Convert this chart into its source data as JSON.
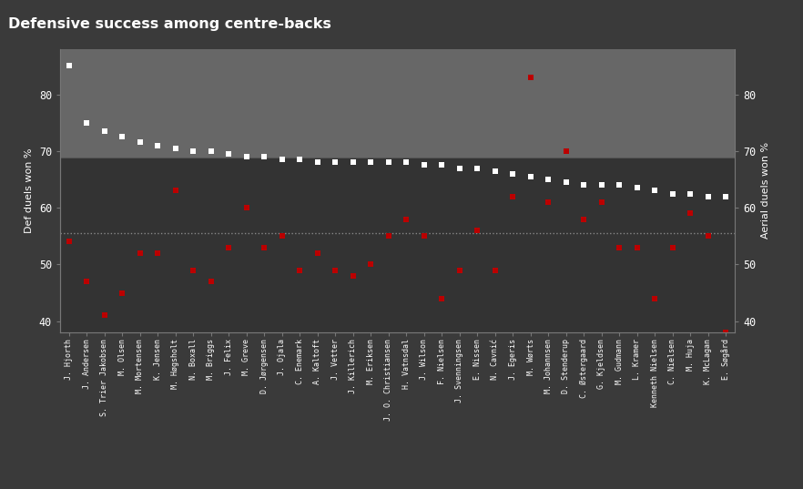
{
  "title": "Defensive success among centre-backs",
  "ylabel_left": "Def duels won %",
  "ylabel_right": "Aerial duels won %",
  "bg_color": "#3a3a3a",
  "plot_bg_upper": "#676767",
  "plot_bg_lower": "#333333",
  "threshold_line": 68.8,
  "dotted_line": 55.5,
  "players": [
    "J. Hjorth",
    "J. Andersen",
    "S. Trier Jakobsen",
    "M. Olsen",
    "M. Mortensen",
    "K. Jensen",
    "M. Høgsholt",
    "N. Boxall",
    "M. Briggs",
    "J. Felix",
    "M. Greve",
    "D. Jørgensen",
    "J. Ojala",
    "C. Enemark",
    "A. Kaltoft",
    "J. Vetter",
    "J. Killerich",
    "M. Eriksen",
    "J. O. Christiansen",
    "H. Vatnsdal",
    "J. Wilson",
    "F. Nielsen",
    "J. Svenningsen",
    "E. Nissen",
    "N. Cavnić",
    "J. Egeris",
    "M. Wørts",
    "M. Johannsen",
    "D. Stenderup",
    "C. Østergaard",
    "G. Kjeldsen",
    "M. Gudmann",
    "L. Kramer",
    "Kenneth Nielsen",
    "C. Nielsen",
    "M. Huja",
    "K. McLagan",
    "E. Søgård"
  ],
  "def_duels": [
    85,
    75,
    73.5,
    72.5,
    71.5,
    71,
    70.5,
    70,
    70,
    69.5,
    69,
    69,
    68.5,
    68.5,
    68,
    68,
    68,
    68,
    68,
    68,
    67.5,
    67.5,
    67,
    67,
    66.5,
    66,
    65.5,
    65,
    64.5,
    64,
    64,
    64,
    63.5,
    63,
    62.5,
    62.5,
    62,
    62
  ],
  "aerial_duels": [
    54,
    47,
    41,
    45,
    52,
    52,
    63,
    49,
    47,
    53,
    60,
    53,
    55,
    49,
    52,
    49,
    48,
    50,
    55,
    58,
    55,
    44,
    49,
    56,
    49,
    62,
    83,
    61,
    70,
    58,
    61,
    53,
    53,
    44,
    53,
    59,
    55,
    38
  ],
  "ylim": [
    38,
    88
  ],
  "yticks": [
    40,
    50,
    60,
    70,
    80
  ]
}
